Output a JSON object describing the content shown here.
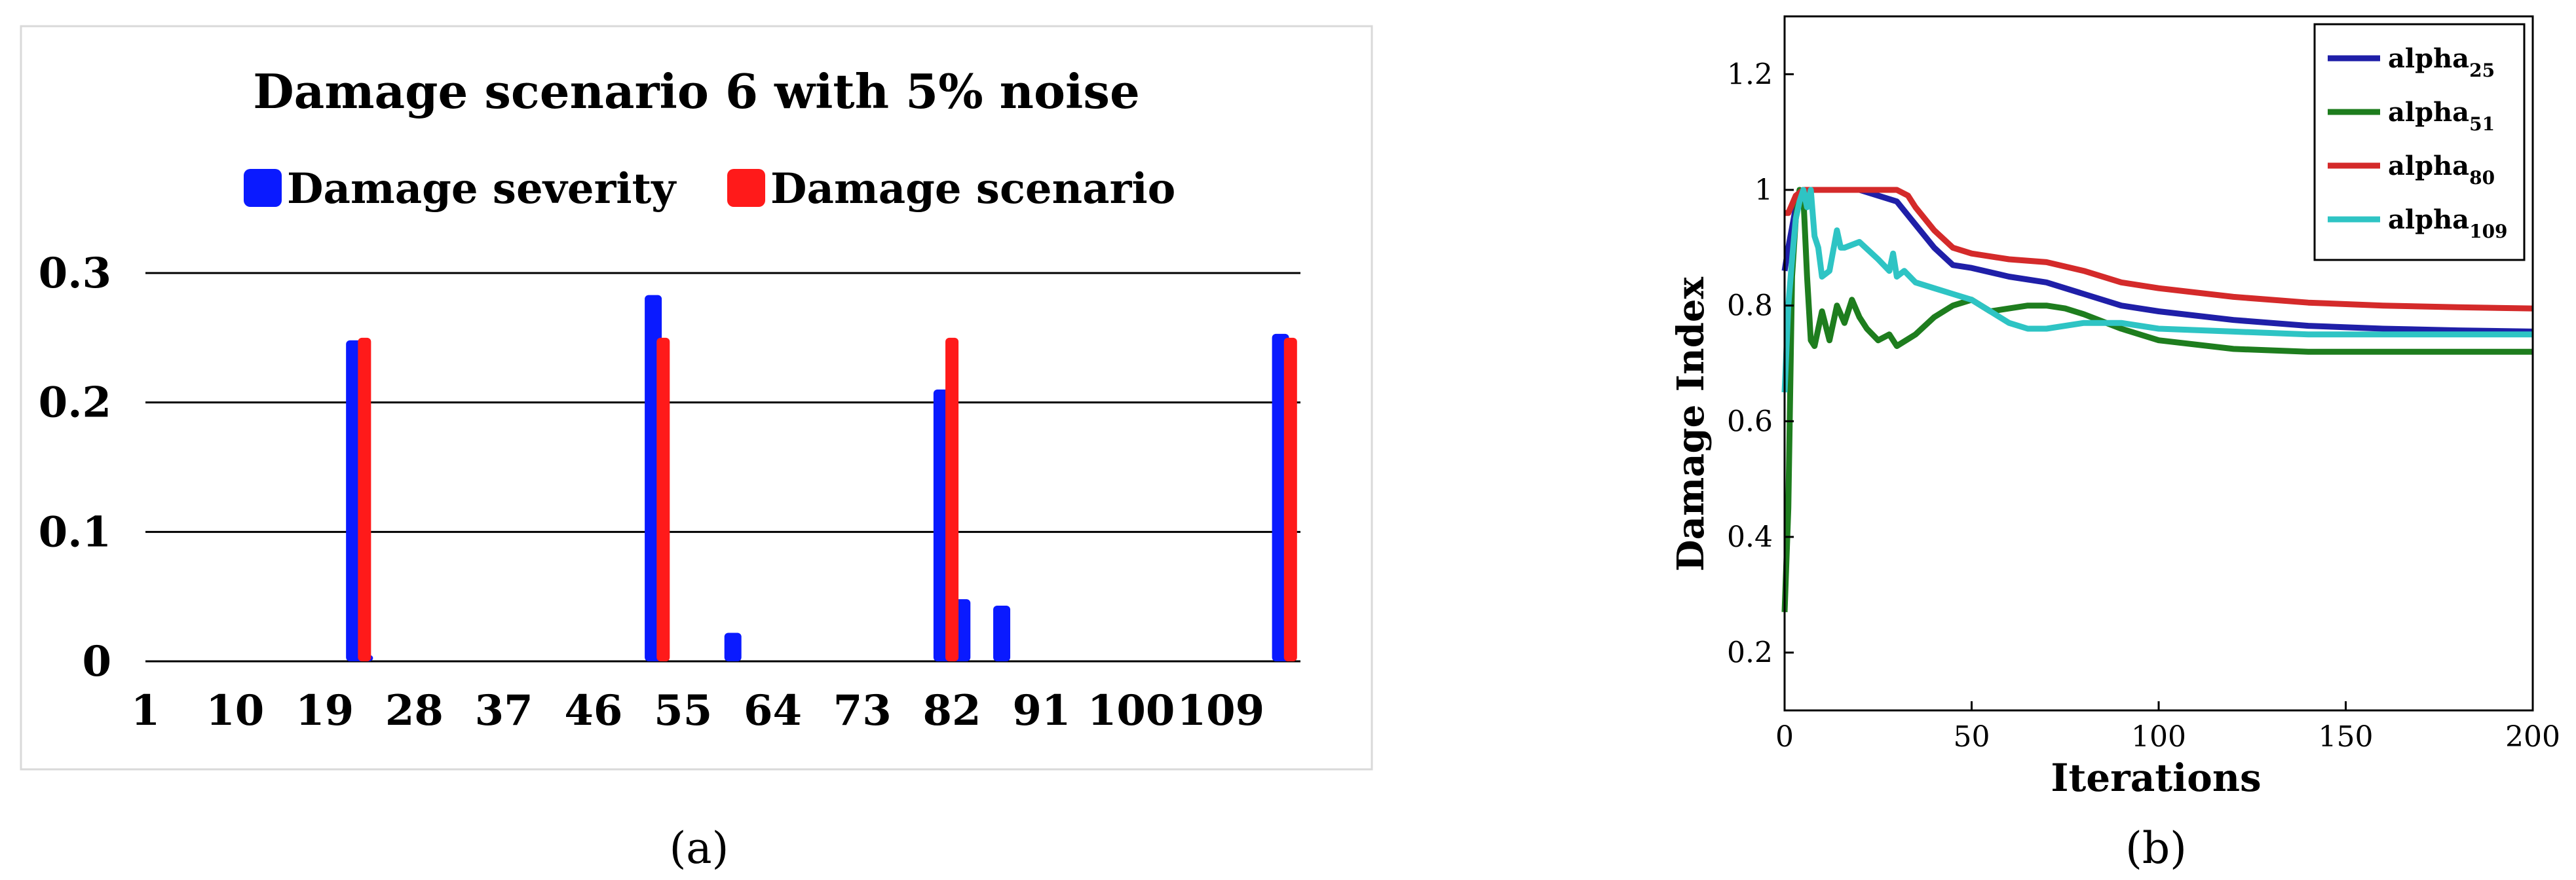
{
  "panels": [
    {
      "caption": "(a)"
    },
    {
      "caption": "(b)"
    }
  ],
  "chart_data": [
    {
      "type": "bar",
      "title": "Damage scenario 6 with 5% noise",
      "xlabel": "",
      "ylabel": "",
      "legend_position": "top",
      "grid": "horizontal",
      "x_range": [
        1,
        117
      ],
      "ylim": [
        0,
        0.3
      ],
      "yticks": [
        0,
        0.1,
        0.2,
        0.3
      ],
      "ytick_labels": [
        "0",
        "0.1",
        "0.2",
        "0.3"
      ],
      "xtick_labels": [
        "1",
        "10",
        "19",
        "28",
        "37",
        "46",
        "55",
        "64",
        "73",
        "82",
        "91",
        "100",
        "109"
      ],
      "series": [
        {
          "name": "Damage severity",
          "color": "#0a1aff",
          "points": [
            {
              "x": 22,
              "y": 0.248
            },
            {
              "x": 23,
              "y": 0.005
            },
            {
              "x": 52,
              "y": 0.283
            },
            {
              "x": 60,
              "y": 0.022
            },
            {
              "x": 81,
              "y": 0.21
            },
            {
              "x": 83,
              "y": 0.048
            },
            {
              "x": 87,
              "y": 0.043
            },
            {
              "x": 115,
              "y": 0.253
            }
          ]
        },
        {
          "name": "Damage scenario",
          "color": "#ff1a1a",
          "points": [
            {
              "x": 23,
              "y": 0.25
            },
            {
              "x": 53,
              "y": 0.25
            },
            {
              "x": 82,
              "y": 0.25
            },
            {
              "x": 116,
              "y": 0.25
            }
          ]
        }
      ]
    },
    {
      "type": "line",
      "title": "",
      "xlabel": "Iterations",
      "ylabel": "Damage Index",
      "legend_position": "top-right",
      "grid": false,
      "xlim": [
        0,
        200
      ],
      "ylim": [
        0.1,
        1.3
      ],
      "xticks": [
        0,
        50,
        100,
        150,
        200
      ],
      "xtick_labels": [
        "0",
        "50",
        "100",
        "150",
        "200"
      ],
      "yticks": [
        0.2,
        0.4,
        0.6,
        0.8,
        1,
        1.2
      ],
      "ytick_labels": [
        "0.2",
        "0.4",
        "0.6",
        "0.8",
        "1",
        "1.2"
      ],
      "series": [
        {
          "name": "alpha",
          "subscript": "25",
          "color": "#1f1fa8",
          "x": [
            0,
            1,
            3,
            5,
            8,
            10,
            15,
            20,
            25,
            30,
            35,
            40,
            45,
            50,
            60,
            70,
            80,
            90,
            100,
            120,
            140,
            160,
            180,
            200
          ],
          "y": [
            0.86,
            0.9,
            0.97,
            1.0,
            1.0,
            1.0,
            1.0,
            1.0,
            0.99,
            0.98,
            0.94,
            0.9,
            0.87,
            0.865,
            0.85,
            0.84,
            0.82,
            0.8,
            0.79,
            0.775,
            0.765,
            0.76,
            0.757,
            0.755
          ]
        },
        {
          "name": "alpha",
          "subscript": "51",
          "color": "#1e7d1e",
          "x": [
            0,
            1,
            2,
            3,
            4,
            5,
            6,
            7,
            8,
            10,
            12,
            14,
            16,
            18,
            20,
            22,
            25,
            28,
            30,
            35,
            40,
            45,
            50,
            55,
            60,
            65,
            70,
            75,
            80,
            90,
            100,
            120,
            140,
            160,
            180,
            200
          ],
          "y": [
            0.27,
            0.45,
            0.85,
            0.95,
            1.0,
            0.99,
            0.85,
            0.74,
            0.73,
            0.79,
            0.74,
            0.8,
            0.77,
            0.81,
            0.78,
            0.76,
            0.74,
            0.75,
            0.73,
            0.75,
            0.78,
            0.8,
            0.81,
            0.79,
            0.795,
            0.8,
            0.8,
            0.795,
            0.785,
            0.76,
            0.74,
            0.725,
            0.72,
            0.72,
            0.72,
            0.72
          ]
        },
        {
          "name": "alpha",
          "subscript": "80",
          "color": "#d42a2a",
          "x": [
            0,
            1,
            3,
            5,
            8,
            10,
            20,
            30,
            33,
            35,
            40,
            45,
            50,
            60,
            70,
            80,
            90,
            100,
            120,
            140,
            160,
            180,
            200
          ],
          "y": [
            0.96,
            0.96,
            0.99,
            1.0,
            1.0,
            1.0,
            1.0,
            1.0,
            0.99,
            0.97,
            0.93,
            0.9,
            0.89,
            0.88,
            0.875,
            0.86,
            0.84,
            0.83,
            0.815,
            0.805,
            0.8,
            0.797,
            0.795
          ]
        },
        {
          "name": "alpha",
          "subscript": "109",
          "color": "#2ec4c4",
          "x": [
            0,
            1,
            2,
            3,
            4,
            5,
            6,
            7,
            8,
            9,
            10,
            12,
            14,
            15,
            16,
            20,
            25,
            28,
            29,
            30,
            32,
            35,
            40,
            45,
            50,
            55,
            60,
            65,
            70,
            80,
            90,
            100,
            120,
            140,
            160,
            180,
            200
          ],
          "y": [
            0.65,
            0.8,
            0.88,
            0.95,
            0.98,
            1.0,
            0.97,
            1.0,
            0.92,
            0.9,
            0.85,
            0.86,
            0.93,
            0.9,
            0.9,
            0.91,
            0.88,
            0.86,
            0.89,
            0.85,
            0.86,
            0.84,
            0.83,
            0.82,
            0.81,
            0.79,
            0.77,
            0.76,
            0.76,
            0.77,
            0.77,
            0.76,
            0.755,
            0.75,
            0.75,
            0.75,
            0.75
          ]
        }
      ]
    }
  ]
}
